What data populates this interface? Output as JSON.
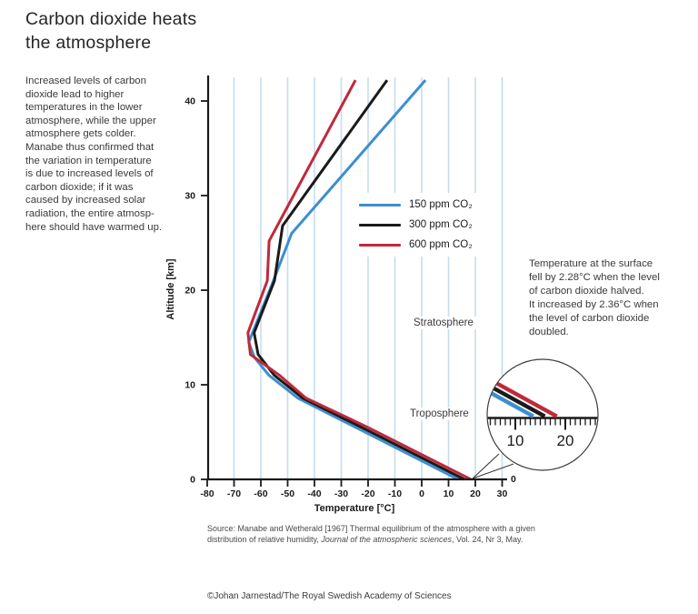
{
  "header": {
    "title": "Carbon dioxide heats\nthe atmosphere"
  },
  "intro": {
    "text": "Increased levels of carbon\ndioxide lead to higher\ntemperatures in the lower\natmosphere, while the upper\natmosphere gets colder.\nManabe thus confirmed that\nthe variation in temperature\nis due to increased levels of\ncarbon dioxide; if it was\ncaused by increased solar\nradiation, the entire atmosp-\nhere should have warmed up."
  },
  "legend": {
    "items": [
      {
        "label": "150 ppm CO₂",
        "color": "#3d8ed0"
      },
      {
        "label": "300 ppm CO₂",
        "color": "#1a1a1a"
      },
      {
        "label": "600 ppm CO₂",
        "color": "#c0293a"
      }
    ]
  },
  "note": {
    "text": "Temperature at the surface\nfell by 2.28°C when the level\nof carbon dioxide halved.\nIt increased by 2.36°C when\nthe level of carbon dioxide\ndoubled."
  },
  "chart_data": {
    "type": "line",
    "xlabel": "Temperature [°C]",
    "ylabel": "Altitude [km]",
    "xlim": [
      -80,
      33
    ],
    "ylim": [
      0,
      42.5
    ],
    "xticks": [
      -80,
      -70,
      -60,
      -50,
      -40,
      -30,
      -20,
      -10,
      0,
      10,
      20,
      30
    ],
    "yticks": [
      0,
      10,
      20,
      30,
      40
    ],
    "gridlines_x": [
      -70,
      -60,
      -50,
      -40,
      -30,
      -20,
      -10,
      0,
      10,
      20,
      30
    ],
    "grid_color": "#c7dded",
    "axis_color": "#1a1a1a",
    "series": [
      {
        "name": "150 ppm CO₂",
        "color": "#3d8ed0",
        "surface_temp_c": 13.6,
        "points_temp_altitude": [
          [
            13.6,
            0
          ],
          [
            -24.6,
            5.5
          ],
          [
            -46.2,
            8.6
          ],
          [
            -57,
            11
          ],
          [
            -62.4,
            12.9
          ],
          [
            -64.5,
            14.5
          ],
          [
            -56,
            20.5
          ],
          [
            -48.5,
            26
          ],
          [
            1.4,
            42.2
          ]
        ]
      },
      {
        "name": "300 ppm CO₂",
        "color": "#1a1a1a",
        "surface_temp_c": 15.9,
        "points_temp_altitude": [
          [
            15.9,
            0
          ],
          [
            -22.4,
            5.5
          ],
          [
            -44.4,
            8.6
          ],
          [
            -55,
            11
          ],
          [
            -61,
            13.2
          ],
          [
            -62.5,
            15.5
          ],
          [
            -54.9,
            21
          ],
          [
            -51.9,
            26.8
          ],
          [
            -12.9,
            42.2
          ]
        ]
      },
      {
        "name": "600 ppm CO₂",
        "color": "#c0293a",
        "surface_temp_c": 18.3,
        "points_temp_altitude": [
          [
            18.3,
            0
          ],
          [
            -20.1,
            5.5
          ],
          [
            -43.2,
            8.6
          ],
          [
            -53,
            11
          ],
          [
            -63.9,
            13.2
          ],
          [
            -64.8,
            15.5
          ],
          [
            -57.6,
            21
          ],
          [
            -56.9,
            25.2
          ],
          [
            -24.7,
            42.2
          ]
        ]
      }
    ],
    "annotations": {
      "stratosphere": "Stratosphere",
      "troposphere": "Troposphere",
      "axis_end_zero": "0"
    },
    "inset": {
      "tick_labels": [
        10,
        20
      ],
      "tick_min": 4,
      "tick_max": 28
    }
  },
  "source": {
    "line1": "Source: Manabe and Wetherald [1967] Thermal equilibrium of the atmosphere with a given",
    "line2_pre": "distribution of relative humidity, ",
    "line2_italic": "Journal of the atmospheric sciences",
    "line2_post": ", Vol. 24, Nr 3, May."
  },
  "credit": {
    "text": "©Johan Jarnestad/The Royal Swedish Academy of Sciences"
  }
}
